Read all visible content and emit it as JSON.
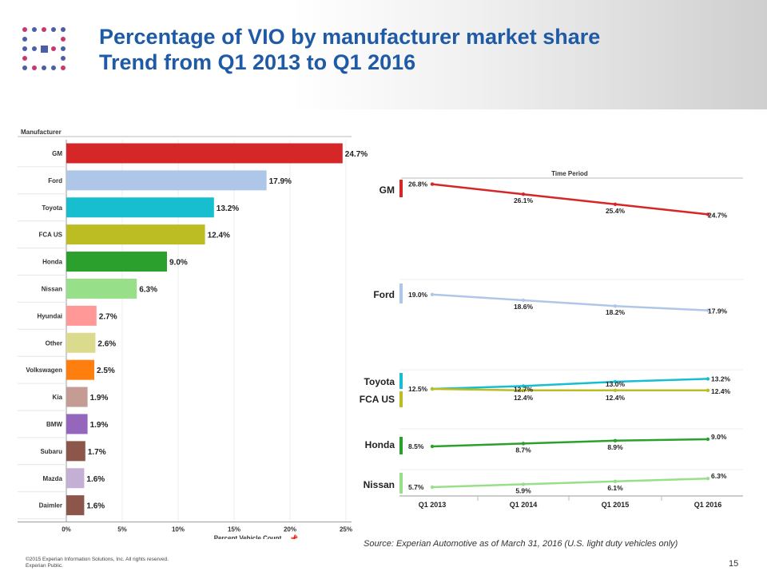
{
  "header": {
    "title_line1": "Percentage of VIO by manufacturer market share",
    "title_line2": "Trend from Q1 2013 to Q1 2016"
  },
  "chart_data": [
    {
      "type": "bar",
      "orientation": "horizontal",
      "ylabel": "Manufacturer",
      "xlabel": "Percent Vehicle Count",
      "xlim": [
        0,
        25
      ],
      "xticks": [
        "0%",
        "5%",
        "10%",
        "15%",
        "20%",
        "25%"
      ],
      "xtick_values": [
        0,
        5,
        10,
        15,
        20,
        25
      ],
      "categories": [
        "GM",
        "Ford",
        "Toyota",
        "FCA US",
        "Honda",
        "Nissan",
        "Hyundai",
        "Other",
        "Volkswagen",
        "Kia",
        "BMW",
        "Subaru",
        "Mazda",
        "Daimler"
      ],
      "values": [
        24.7,
        17.9,
        13.2,
        12.4,
        9.0,
        6.3,
        2.7,
        2.6,
        2.5,
        1.9,
        1.9,
        1.7,
        1.6,
        1.6
      ],
      "labels": [
        "24.7%",
        "17.9%",
        "13.2%",
        "12.4%",
        "9.0%",
        "6.3%",
        "2.7%",
        "2.6%",
        "2.5%",
        "1.9%",
        "1.9%",
        "1.7%",
        "1.6%",
        "1.6%"
      ],
      "colors": [
        "#d62728",
        "#aec7e8",
        "#17becf",
        "#bcbd22",
        "#2ca02c",
        "#98df8a",
        "#ff9896",
        "#dbdb8d",
        "#ff7f0e",
        "#c49c94",
        "#9467bd",
        "#8c564b",
        "#c5b0d5",
        "#8c564b"
      ]
    },
    {
      "type": "line",
      "title": "Time Period",
      "x": [
        "Q1 2013",
        "Q1 2014",
        "Q1 2015",
        "Q1 2016"
      ],
      "series": [
        {
          "name": "GM",
          "color": "#d62728",
          "values": [
            26.8,
            26.1,
            25.4,
            24.7
          ],
          "labels": [
            "26.8%",
            "26.1%",
            "25.4%",
            "24.7%"
          ]
        },
        {
          "name": "Ford",
          "color": "#aec7e8",
          "values": [
            19.0,
            18.6,
            18.2,
            17.9
          ],
          "labels": [
            "19.0%",
            "18.6%",
            "18.2%",
            "17.9%"
          ]
        },
        {
          "name": "Toyota",
          "color": "#17becf",
          "values": [
            12.5,
            12.7,
            13.0,
            13.2
          ],
          "labels": [
            "12.5%",
            "12.7%",
            "13.0%",
            "13.2%"
          ]
        },
        {
          "name": "FCA US",
          "color": "#bcbd22",
          "values": [
            12.5,
            12.4,
            12.4,
            12.4
          ],
          "labels": [
            "",
            "12.4%",
            "12.4%",
            "12.4%"
          ]
        },
        {
          "name": "Honda",
          "color": "#2ca02c",
          "values": [
            8.5,
            8.7,
            8.9,
            9.0
          ],
          "labels": [
            "8.5%",
            "8.7%",
            "8.9%",
            "9.0%"
          ]
        },
        {
          "name": "Nissan",
          "color": "#98df8a",
          "values": [
            5.7,
            5.9,
            6.1,
            6.3
          ],
          "labels": [
            "5.7%",
            "5.9%",
            "6.1%",
            "6.3%"
          ]
        }
      ]
    }
  ],
  "footer": {
    "source": "Source: Experian Automotive as of March 31, 2016  (U.S. light duty vehicles only)",
    "copyright_line1": "©2015  Experian Information Solutions, Inc. All rights reserved.",
    "copyright_line2": "Experian Public.",
    "page_number": "15"
  }
}
